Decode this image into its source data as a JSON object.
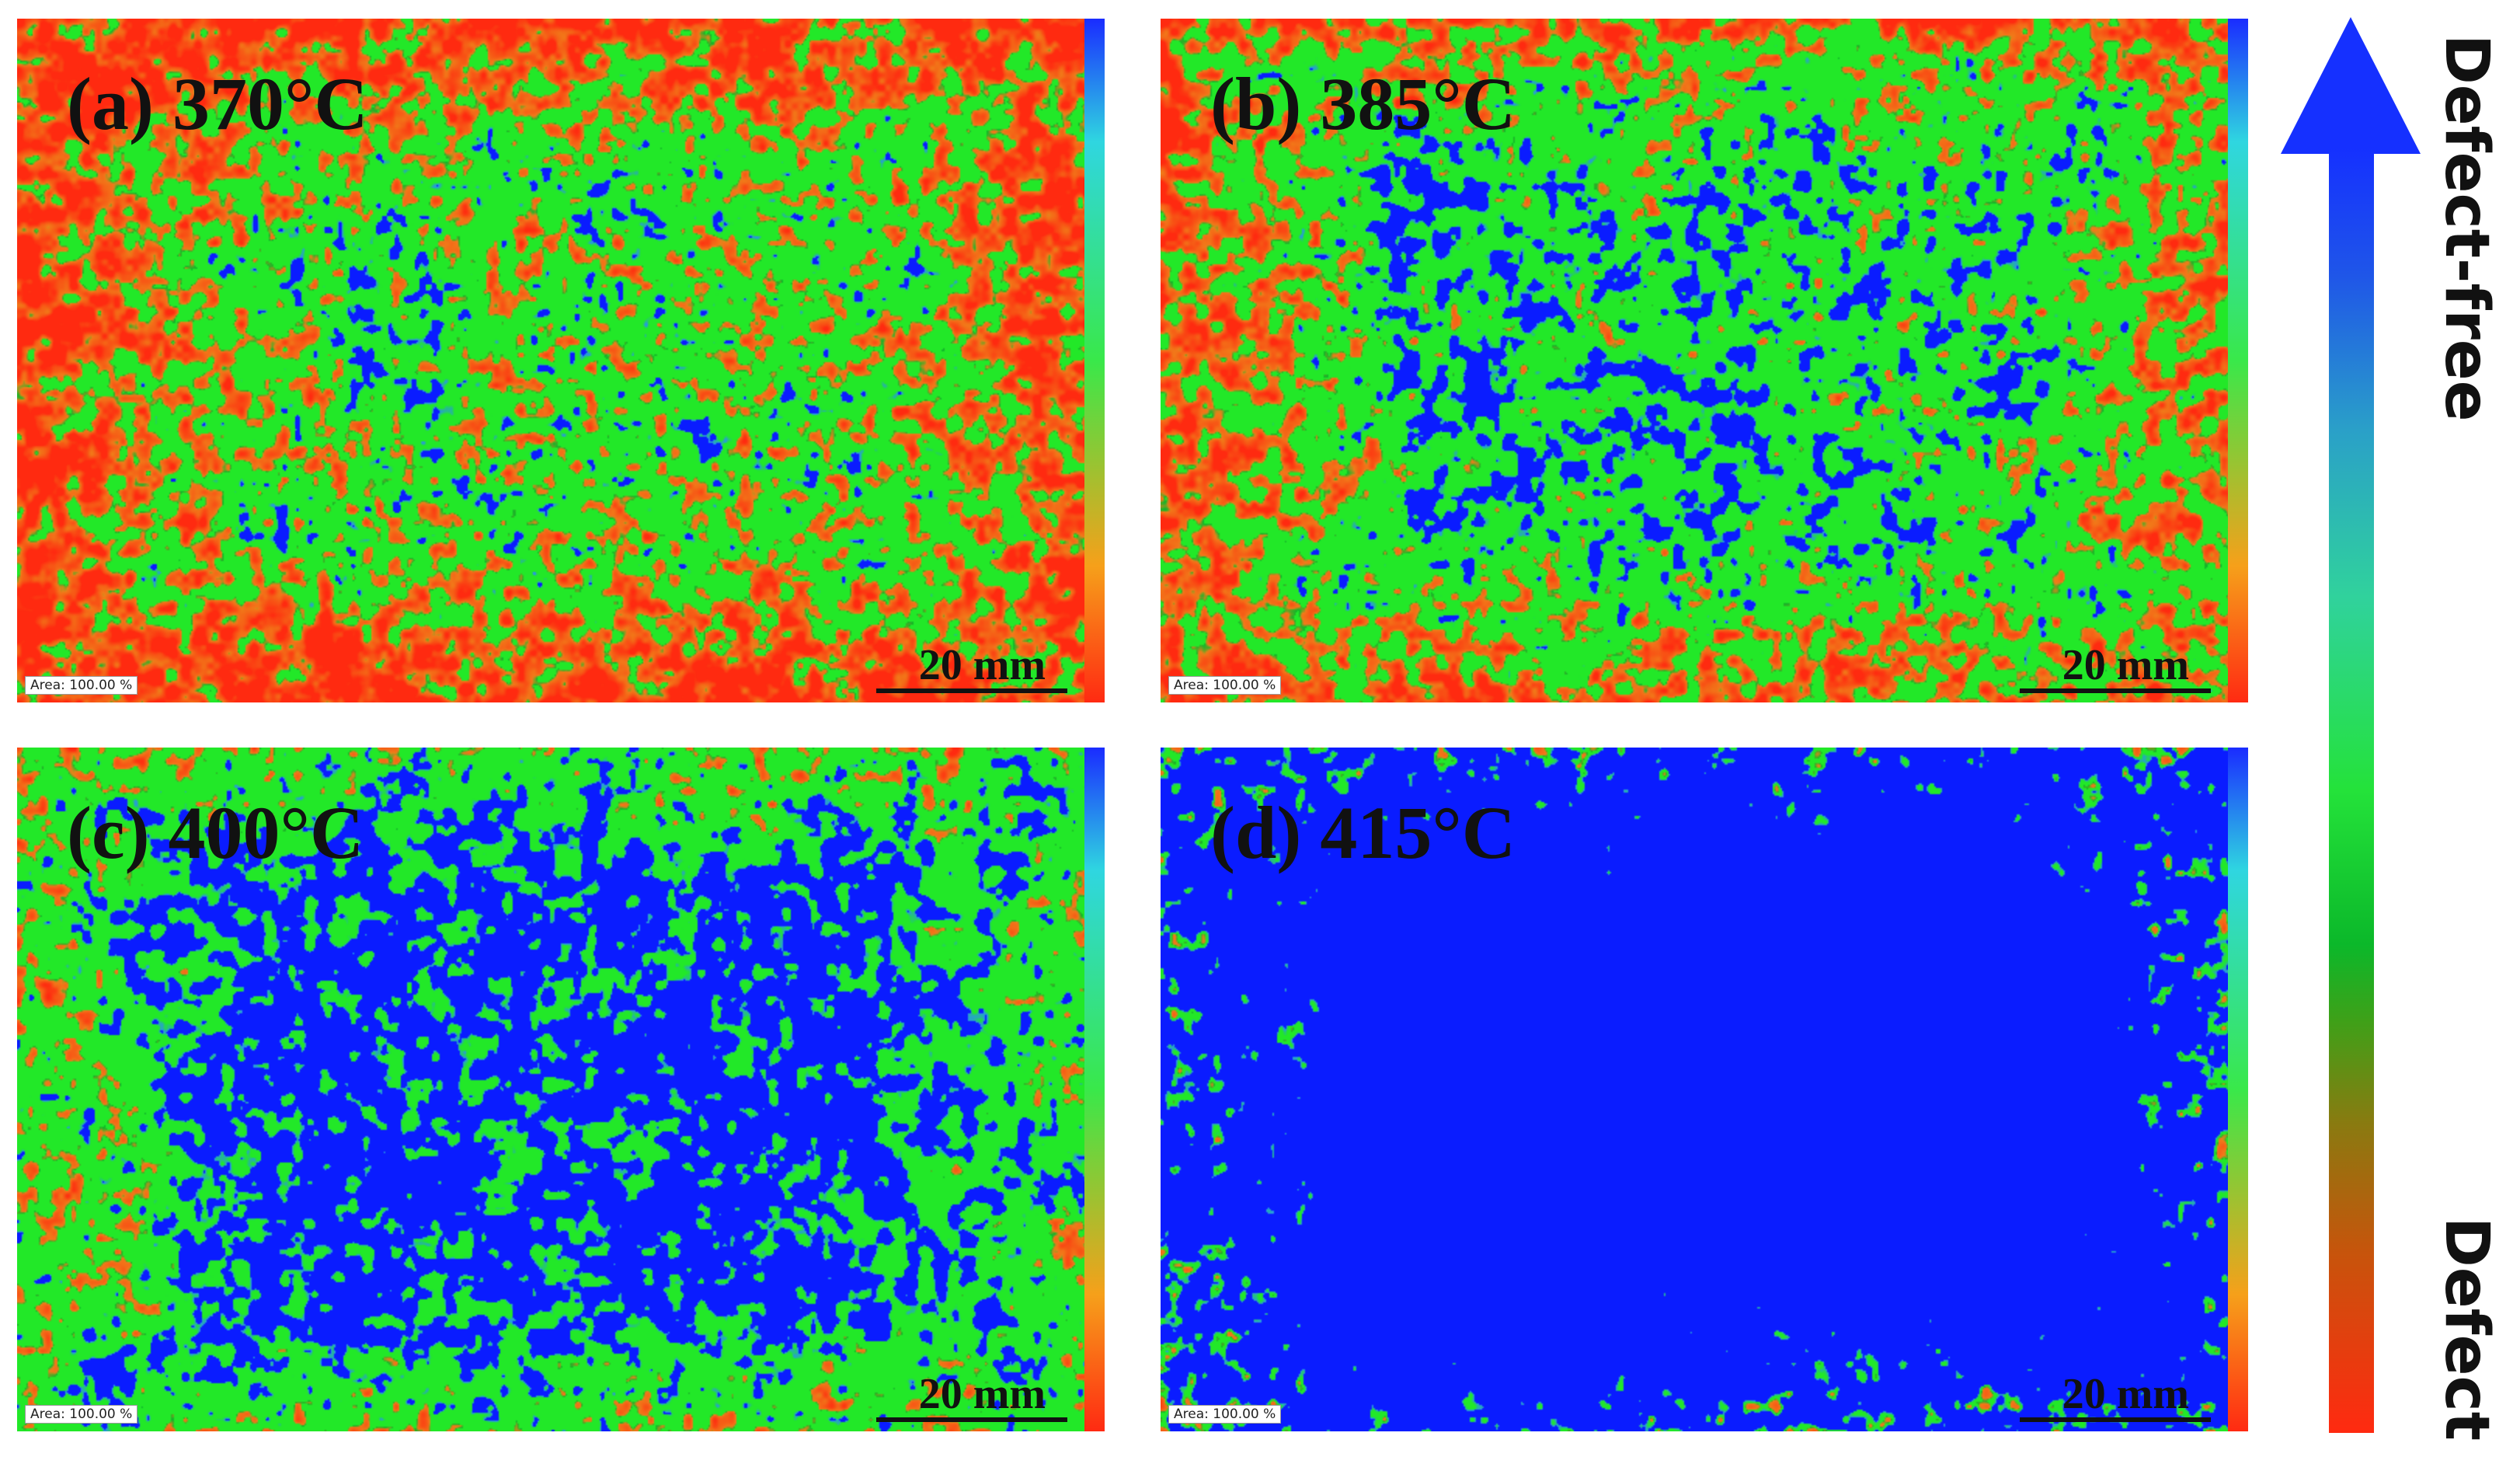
{
  "panels": [
    {
      "id": "a",
      "label": "(a) 370°C",
      "area_text": "Area: 100.00 %",
      "scale_bar": "20 mm",
      "mix": {
        "blue": 0.03,
        "green": 0.48,
        "red": 0.49
      }
    },
    {
      "id": "b",
      "label": "(b) 385°C",
      "area_text": "Area: 100.00 %",
      "scale_bar": "20 mm",
      "mix": {
        "blue": 0.12,
        "green": 0.62,
        "red": 0.26
      }
    },
    {
      "id": "c",
      "label": "(c) 400°C",
      "area_text": "Area: 100.00 %",
      "scale_bar": "20 mm",
      "mix": {
        "blue": 0.46,
        "green": 0.5,
        "red": 0.04
      }
    },
    {
      "id": "d",
      "label": "(d) 415°C",
      "area_text": "Area: 100.00 %",
      "scale_bar": "20 mm",
      "mix": {
        "blue": 0.96,
        "green": 0.035,
        "red": 0.005
      }
    }
  ],
  "colorbar": {
    "top_label": "Defect-free",
    "bottom_label": "Defect",
    "colors": {
      "blue": "#0a1cff",
      "cyan": "#2aa0c8",
      "green": "#22e828",
      "dark_green": "#0bb82a",
      "orange": "#f0801a",
      "red": "#ff2a10"
    }
  }
}
